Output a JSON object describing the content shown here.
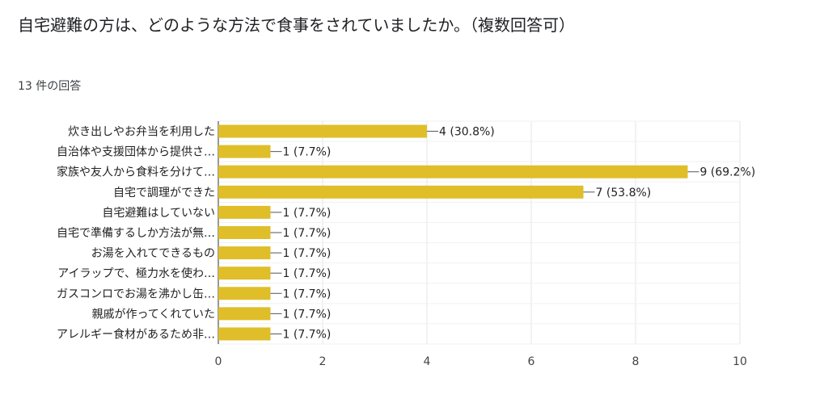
{
  "question": {
    "title": "自宅避難の方は、どのような方法で食事をされていましたか。（複数回答可）",
    "response_count": "13 件の回答"
  },
  "chart_data": {
    "type": "bar",
    "orientation": "horizontal",
    "categories": [
      "炊き出しやお弁当を利用した",
      "自治体や支援団体から提供さ…",
      "家族や友人から食料を分けて…",
      "自宅で調理ができた",
      "自宅避難はしていない",
      "自宅で準備するしか方法が無…",
      "お湯を入れてできるもの",
      "アイラップで、極力水を使わ…",
      "ガスコンロでお湯を沸かし缶…",
      "親戚が作ってくれていた",
      "アレルギー食材があるため非…"
    ],
    "values": [
      4,
      1,
      9,
      7,
      1,
      1,
      1,
      1,
      1,
      1,
      1
    ],
    "data_labels": [
      "4 (30.8%)",
      "1 (7.7%)",
      "9 (69.2%)",
      "7 (53.8%)",
      "1 (7.7%)",
      "1 (7.7%)",
      "1 (7.7%)",
      "1 (7.7%)",
      "1 (7.7%)",
      "1 (7.7%)",
      "1 (7.7%)"
    ],
    "xlim": [
      0,
      10
    ],
    "xticks": [
      0,
      2,
      4,
      6,
      8,
      10
    ],
    "grid": true,
    "bar_color": "#dfbe2a"
  }
}
